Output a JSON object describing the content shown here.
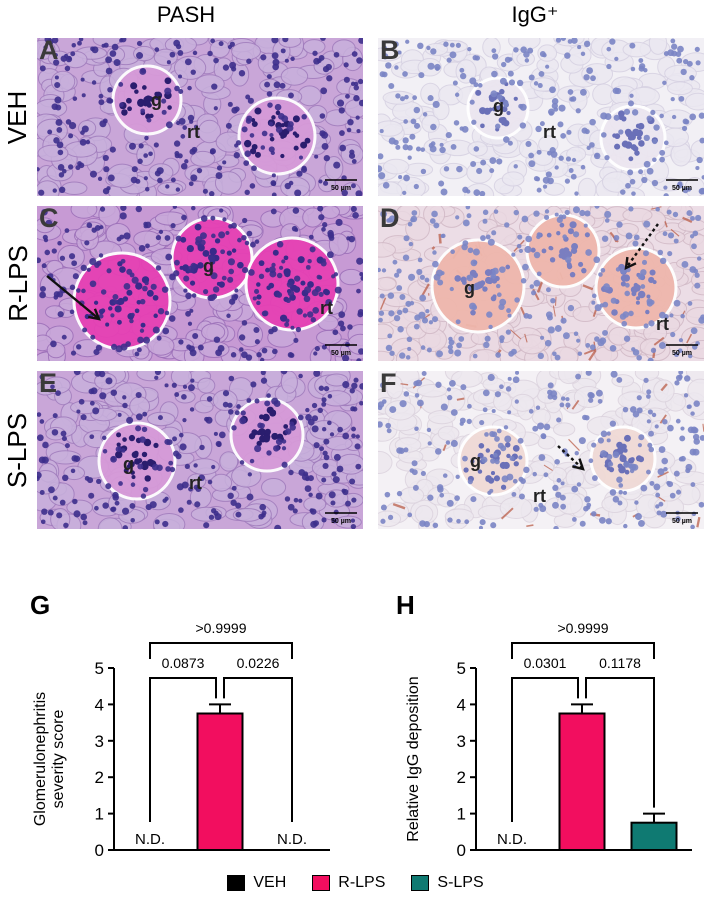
{
  "figure": {
    "column_titles": [
      "PASH",
      "IgG⁺"
    ],
    "row_labels": [
      "VEH",
      "R-LPS",
      "S-LPS"
    ],
    "panels": [
      {
        "letter": "A",
        "row": 0,
        "col": 0,
        "stain": "pash",
        "labels": [
          {
            "text": "g"
          },
          {
            "text": "rt"
          }
        ],
        "scale_bar": "50 µm",
        "arrow": "none"
      },
      {
        "letter": "B",
        "row": 0,
        "col": 1,
        "stain": "igg",
        "labels": [
          {
            "text": "g"
          },
          {
            "text": "rt"
          }
        ],
        "scale_bar": "50 µm",
        "arrow": "none"
      },
      {
        "letter": "C",
        "row": 1,
        "col": 0,
        "stain": "pash-strong",
        "labels": [
          {
            "text": "g"
          },
          {
            "text": "rt"
          }
        ],
        "scale_bar": "50 µm",
        "arrow": "solid"
      },
      {
        "letter": "D",
        "row": 1,
        "col": 1,
        "stain": "igg-strong",
        "labels": [
          {
            "text": "g"
          },
          {
            "text": "rt"
          }
        ],
        "scale_bar": "50 µm",
        "arrow": "dotted"
      },
      {
        "letter": "E",
        "row": 2,
        "col": 0,
        "stain": "pash",
        "labels": [
          {
            "text": "g"
          },
          {
            "text": "rt"
          }
        ],
        "scale_bar": "50 µm",
        "arrow": "none"
      },
      {
        "letter": "F",
        "row": 2,
        "col": 1,
        "stain": "igg-mild",
        "labels": [
          {
            "text": "g"
          },
          {
            "text": "rt"
          }
        ],
        "scale_bar": "50 µm",
        "arrow": "dotted"
      }
    ]
  },
  "chart_data": [
    {
      "letter": "G",
      "type": "bar",
      "ylabel": "Glomerulonephritis severity score",
      "ylim": [
        0,
        5
      ],
      "yticks": [
        "0",
        "1",
        "2",
        "3",
        "4",
        "5"
      ],
      "categories": [
        "VEH",
        "R-LPS",
        "S-LPS"
      ],
      "values": [
        null,
        3.75,
        null
      ],
      "errors": [
        null,
        0.25,
        null
      ],
      "bar_labels": [
        "N.D.",
        "",
        "N.D."
      ],
      "comparisons": [
        {
          "from": 0,
          "to": 1,
          "label": "0.0873",
          "y": 4.3
        },
        {
          "from": 1,
          "to": 2,
          "label": "0.0226",
          "y": 4.3
        },
        {
          "from": 0,
          "to": 2,
          "label": ">0.9999",
          "y": 5.5
        }
      ]
    },
    {
      "letter": "H",
      "type": "bar",
      "ylabel": "Relative IgG deposition",
      "ylim": [
        0,
        5
      ],
      "yticks": [
        "0",
        "1",
        "2",
        "3",
        "4",
        "5"
      ],
      "categories": [
        "VEH",
        "R-LPS",
        "S-LPS"
      ],
      "values": [
        null,
        3.75,
        0.75
      ],
      "errors": [
        null,
        0.25,
        0.25
      ],
      "bar_labels": [
        "N.D.",
        "",
        ""
      ],
      "comparisons": [
        {
          "from": 0,
          "to": 1,
          "label": "0.0301",
          "y": 4.3
        },
        {
          "from": 1,
          "to": 2,
          "label": "0.1178",
          "y": 4.3
        },
        {
          "from": 0,
          "to": 2,
          "label": ">0.9999",
          "y": 5.5
        }
      ]
    }
  ],
  "legend": [
    {
      "label": "VEH",
      "color": "#000000"
    },
    {
      "label": "R-LPS",
      "color": "#f20e5f"
    },
    {
      "label": "S-LPS",
      "color": "#0f7a72"
    }
  ],
  "colors": {
    "veh": "#000000",
    "rlps": "#f20e5f",
    "slps": "#0f7a72"
  }
}
